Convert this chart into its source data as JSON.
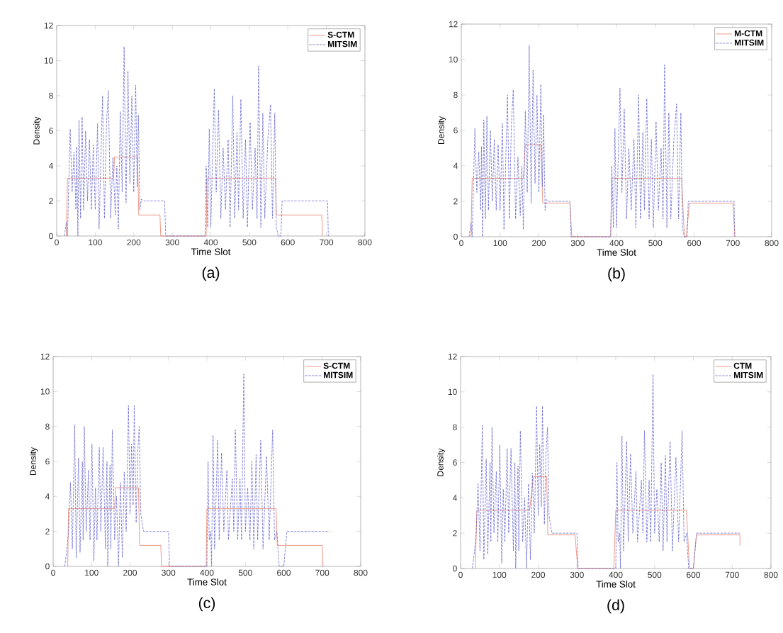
{
  "chart_data": [
    {
      "type": "line",
      "xlabel": "Time Slot",
      "ylabel": "Density",
      "annotations": [
        "(a)"
      ],
      "xlim": [
        0,
        800
      ],
      "ylim": [
        0,
        12
      ],
      "xticks": [
        0,
        100,
        200,
        300,
        400,
        500,
        600,
        700,
        800
      ],
      "yticks": [
        0,
        2,
        4,
        6,
        8,
        10,
        12
      ],
      "legend": "top right",
      "series": [
        {
          "name": "S-CTM",
          "color": "#e8806a",
          "line_style": "solid",
          "x": [
            25,
            28,
            148,
            150,
            210,
            213,
            268,
            270,
            388,
            390,
            568,
            570,
            688,
            690
          ],
          "values": [
            0,
            3.3,
            3.3,
            4.5,
            4.5,
            1.2,
            1.2,
            0,
            0,
            3.3,
            3.3,
            1.2,
            1.2,
            0
          ]
        },
        {
          "name": "MITSIM",
          "color": "#6a6ad0",
          "line_style": "dashed",
          "x": [
            20,
            25,
            28,
            35,
            40,
            45,
            50,
            52,
            55,
            58,
            62,
            66,
            70,
            75,
            80,
            85,
            90,
            95,
            100,
            106,
            110,
            119,
            124,
            129,
            134,
            140,
            146,
            152,
            156,
            160,
            165,
            170,
            175,
            180,
            185,
            190,
            195,
            200,
            205,
            209,
            212,
            216,
            220,
            225,
            280,
            283,
            385,
            388,
            392,
            396,
            400,
            409,
            414,
            420,
            426,
            432,
            438,
            445,
            450,
            457,
            462,
            468,
            472,
            478,
            484,
            490,
            495,
            502,
            508,
            515,
            520,
            524,
            530,
            535,
            540,
            548,
            555,
            560,
            566,
            570,
            575,
            582,
            585,
            703,
            705
          ],
          "values": [
            0,
            0.8,
            0,
            6.1,
            2.5,
            4.8,
            1.5,
            5.1,
            0,
            6.6,
            1.0,
            6.8,
            1.5,
            6.0,
            2.0,
            5.5,
            1.5,
            5.2,
            1.5,
            6.4,
            0.4,
            8.0,
            1.0,
            6.3,
            8.3,
            1.0,
            4.5,
            1.2,
            4.0,
            0.4,
            7.1,
            2.5,
            10.8,
            1.9,
            9.4,
            3.0,
            8.0,
            2.5,
            8.6,
            2.8,
            6.9,
            1.5,
            2.1,
            2.0,
            2.0,
            0,
            0,
            4.0,
            0.5,
            6.1,
            0.5,
            8.4,
            2.5,
            7.2,
            1.0,
            5.0,
            1.5,
            5.5,
            0.5,
            8.0,
            1.0,
            5.9,
            1.5,
            7.8,
            1.0,
            5.5,
            0.5,
            6.5,
            1.5,
            5.0,
            1.0,
            9.7,
            0.5,
            7.0,
            1.0,
            5.5,
            7.5,
            1.0,
            7.0,
            0.5,
            0,
            0,
            2.0,
            2.0,
            0
          ]
        }
      ]
    },
    {
      "type": "line",
      "xlabel": "Time Slot",
      "ylabel": "Density",
      "annotations": [
        "(b)"
      ],
      "xlim": [
        0,
        800
      ],
      "ylim": [
        0,
        12
      ],
      "xticks": [
        0,
        100,
        200,
        300,
        400,
        500,
        600,
        700,
        800
      ],
      "yticks": [
        0,
        2,
        4,
        6,
        8,
        10,
        12
      ],
      "legend": "top right",
      "series": [
        {
          "name": "M-CTM",
          "color": "#e8806a",
          "line_style": "solid",
          "x": [
            25,
            28,
            160,
            165,
            205,
            210,
            280,
            285,
            385,
            388,
            568,
            575,
            580,
            588,
            700,
            705
          ],
          "values": [
            0,
            3.3,
            3.3,
            5.2,
            5.2,
            1.9,
            1.9,
            0,
            0,
            3.3,
            3.3,
            0,
            0,
            1.9,
            1.9,
            0
          ]
        },
        {
          "name": "MITSIM",
          "color": "#6a6ad0",
          "line_style": "dashed",
          "x": [
            20,
            25,
            28,
            35,
            40,
            45,
            50,
            52,
            55,
            58,
            62,
            66,
            70,
            75,
            80,
            85,
            90,
            95,
            100,
            106,
            110,
            119,
            124,
            129,
            134,
            140,
            146,
            152,
            156,
            160,
            165,
            170,
            175,
            180,
            185,
            190,
            195,
            200,
            205,
            209,
            212,
            216,
            220,
            225,
            280,
            283,
            385,
            388,
            392,
            396,
            400,
            409,
            414,
            420,
            426,
            432,
            438,
            445,
            450,
            457,
            462,
            468,
            472,
            478,
            484,
            490,
            495,
            502,
            508,
            515,
            520,
            524,
            530,
            535,
            540,
            548,
            555,
            560,
            566,
            570,
            575,
            582,
            585,
            703,
            705
          ],
          "values": [
            0,
            0.8,
            0,
            6.1,
            2.5,
            4.8,
            1.5,
            5.1,
            0,
            6.6,
            1.0,
            6.8,
            1.5,
            6.0,
            2.0,
            5.5,
            1.5,
            5.2,
            1.5,
            6.4,
            0.4,
            8.0,
            1.0,
            6.3,
            8.3,
            1.0,
            4.5,
            1.2,
            4.0,
            0.4,
            7.1,
            2.5,
            10.8,
            1.9,
            9.4,
            3.0,
            8.0,
            2.5,
            8.6,
            2.8,
            6.9,
            1.5,
            2.1,
            2.0,
            2.0,
            0,
            0,
            4.0,
            0.5,
            6.1,
            0.5,
            8.4,
            2.5,
            7.2,
            1.0,
            5.0,
            1.5,
            5.5,
            0.5,
            8.0,
            1.0,
            5.9,
            1.5,
            7.8,
            1.0,
            5.5,
            0.5,
            6.5,
            1.5,
            5.0,
            1.0,
            9.7,
            0.5,
            7.0,
            1.0,
            5.5,
            7.5,
            1.0,
            7.0,
            0.5,
            0,
            0,
            2.0,
            2.0,
            0
          ]
        }
      ]
    },
    {
      "type": "line",
      "xlabel": "Time Slot",
      "ylabel": "Density",
      "annotations": [
        "(c)"
      ],
      "xlim": [
        0,
        800
      ],
      "ylim": [
        0,
        12
      ],
      "xticks": [
        0,
        100,
        200,
        300,
        400,
        500,
        600,
        700,
        800
      ],
      "yticks": [
        0,
        2,
        4,
        6,
        8,
        10,
        12
      ],
      "legend": "top right",
      "series": [
        {
          "name": "S-CTM",
          "color": "#e8806a",
          "line_style": "solid",
          "x": [
            38,
            40,
            160,
            162,
            222,
            225,
            280,
            282,
            398,
            400,
            580,
            583,
            700,
            702
          ],
          "values": [
            0,
            3.3,
            3.3,
            4.5,
            4.5,
            1.2,
            1.2,
            0,
            0,
            3.3,
            3.3,
            1.2,
            1.2,
            0
          ]
        },
        {
          "name": "MITSIM",
          "color": "#6a6ad0",
          "line_style": "dashed",
          "x": [
            30,
            35,
            40,
            45,
            50,
            56,
            60,
            66,
            70,
            76,
            78,
            81,
            86,
            92,
            96,
            101,
            106,
            110,
            114,
            120,
            124,
            130,
            136,
            140,
            142,
            148,
            150,
            154,
            160,
            165,
            170,
            175,
            180,
            185,
            190,
            196,
            200,
            204,
            208,
            211,
            216,
            220,
            224,
            228,
            235,
            240,
            300,
            303,
            395,
            400,
            403,
            406,
            410,
            412,
            416,
            420,
            428,
            432,
            438,
            444,
            452,
            456,
            466,
            470,
            474,
            480,
            486,
            490,
            496,
            500,
            506,
            512,
            517,
            522,
            528,
            532,
            540,
            546,
            555,
            562,
            571,
            576,
            582,
            588,
            600,
            608,
            720
          ],
          "values": [
            0,
            0.8,
            2.0,
            4.8,
            1.0,
            8.1,
            0.5,
            6.2,
            0.8,
            6.0,
            1.5,
            8.0,
            2.0,
            5.5,
            1.5,
            7.0,
            0.3,
            4.5,
            1.5,
            6.8,
            2.0,
            6.8,
            1.0,
            6.0,
            0,
            5.8,
            1.0,
            7.8,
            1.5,
            4.0,
            0,
            4.8,
            0.5,
            5.4,
            2.0,
            9.2,
            3.0,
            7.0,
            3.5,
            9.2,
            2.5,
            6.5,
            8.0,
            3.0,
            2.0,
            2.0,
            2.0,
            0,
            0,
            0,
            6.0,
            1.5,
            2.0,
            0,
            7.5,
            1.0,
            7.2,
            1.5,
            6.5,
            2.0,
            5.5,
            1.5,
            5.0,
            2.0,
            7.8,
            1.5,
            5.0,
            1.5,
            11.0,
            2.0,
            4.5,
            1.5,
            6.0,
            1.0,
            6.4,
            1.5,
            7.2,
            1.0,
            6.3,
            1.5,
            7.8,
            1.5,
            2.0,
            0,
            0,
            2.0,
            2.0
          ]
        }
      ]
    },
    {
      "type": "line",
      "xlabel": "Time Slot",
      "ylabel": "Density",
      "annotations": [
        "(d)"
      ],
      "xlim": [
        0,
        800
      ],
      "ylim": [
        0,
        12
      ],
      "xticks": [
        0,
        100,
        200,
        300,
        400,
        500,
        600,
        700,
        800
      ],
      "yticks": [
        0,
        2,
        4,
        6,
        8,
        10,
        12
      ],
      "legend": "top right",
      "series": [
        {
          "name": "CTM",
          "color": "#e8806a",
          "line_style": "solid",
          "x": [
            38,
            42,
            178,
            185,
            188,
            222,
            225,
            295,
            302,
            395,
            400,
            582,
            590,
            600,
            608,
            720,
            720
          ],
          "values": [
            0,
            3.3,
            3.3,
            4.7,
            5.2,
            5.2,
            1.9,
            1.9,
            0,
            0,
            3.3,
            3.3,
            0,
            0,
            1.9,
            1.9,
            1.3
          ]
        },
        {
          "name": "MITSIM",
          "color": "#6a6ad0",
          "line_style": "dashed",
          "x": [
            30,
            35,
            40,
            45,
            50,
            56,
            60,
            66,
            70,
            76,
            78,
            81,
            86,
            92,
            96,
            101,
            106,
            110,
            114,
            120,
            124,
            130,
            136,
            140,
            142,
            148,
            150,
            154,
            160,
            165,
            170,
            175,
            180,
            185,
            190,
            196,
            200,
            204,
            208,
            211,
            216,
            220,
            224,
            228,
            235,
            240,
            300,
            303,
            395,
            400,
            403,
            406,
            410,
            412,
            416,
            420,
            428,
            432,
            438,
            444,
            452,
            456,
            466,
            470,
            474,
            480,
            486,
            490,
            496,
            500,
            506,
            512,
            517,
            522,
            528,
            532,
            540,
            546,
            555,
            562,
            571,
            576,
            582,
            588,
            600,
            608,
            720
          ],
          "values": [
            0,
            0.8,
            2.0,
            4.8,
            1.0,
            8.1,
            0.5,
            6.2,
            0.8,
            6.0,
            1.5,
            8.0,
            2.0,
            5.5,
            1.5,
            7.0,
            0.3,
            4.5,
            1.5,
            6.8,
            2.0,
            6.8,
            1.0,
            6.0,
            0,
            5.8,
            1.0,
            7.8,
            1.5,
            4.0,
            0,
            4.8,
            0.5,
            5.4,
            2.0,
            9.2,
            3.0,
            7.0,
            3.5,
            9.2,
            2.5,
            6.5,
            8.0,
            3.0,
            2.0,
            2.0,
            2.0,
            0,
            0,
            0,
            6.0,
            1.5,
            2.0,
            0,
            7.5,
            1.0,
            7.2,
            1.5,
            6.5,
            2.0,
            5.5,
            1.5,
            5.0,
            2.0,
            7.8,
            1.5,
            5.0,
            1.5,
            11.0,
            2.0,
            4.5,
            1.5,
            6.0,
            1.0,
            6.4,
            1.5,
            7.2,
            1.0,
            6.3,
            1.5,
            7.8,
            1.5,
            2.0,
            0,
            0,
            2.0,
            2.0
          ]
        }
      ]
    }
  ]
}
